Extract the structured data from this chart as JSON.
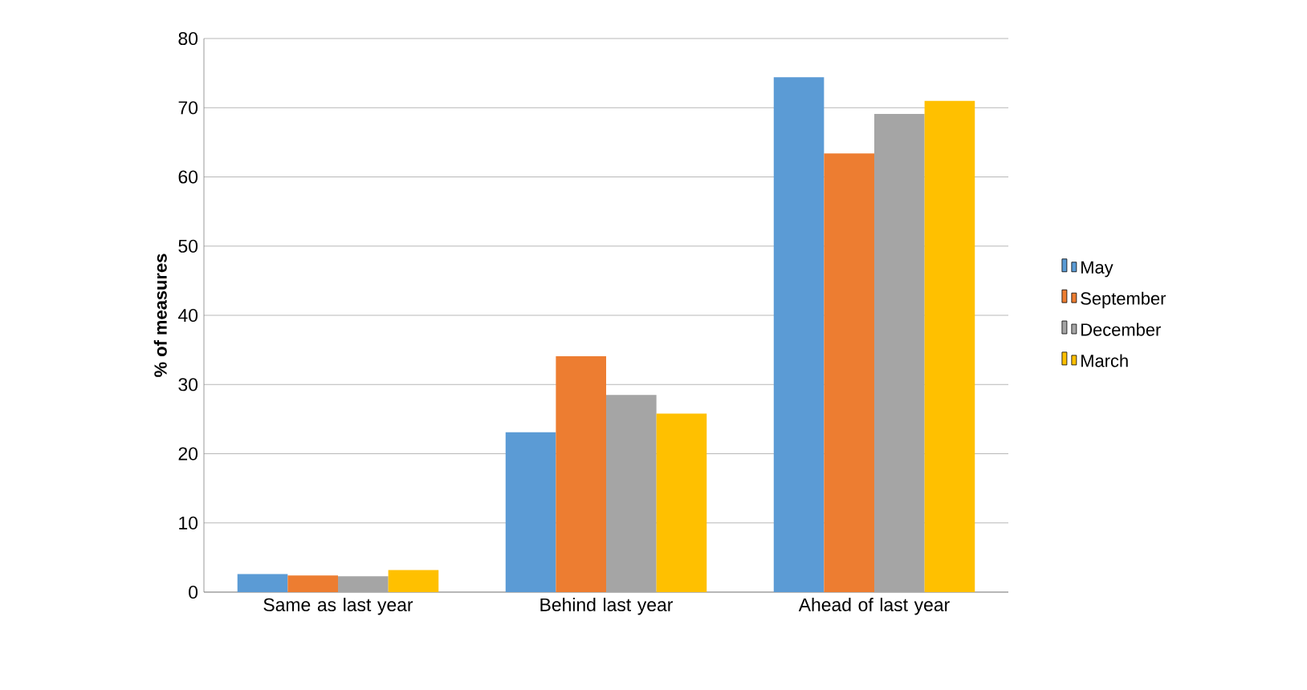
{
  "chart_data": {
    "type": "bar",
    "ylabel": "% of measures",
    "categories": [
      "Same as last year",
      "Behind last year",
      "Ahead of last year"
    ],
    "series": [
      {
        "name": "May",
        "color": "#5b9bd5",
        "values": [
          2.6,
          23.1,
          74.4
        ]
      },
      {
        "name": "September",
        "color": "#ed7d31",
        "values": [
          2.4,
          34.1,
          63.4
        ]
      },
      {
        "name": "December",
        "color": "#a5a5a5",
        "values": [
          2.3,
          28.5,
          69.1
        ]
      },
      {
        "name": "March",
        "color": "#ffc000",
        "values": [
          3.2,
          25.8,
          71.0
        ]
      }
    ],
    "ylim": [
      0,
      80
    ],
    "yticks": [
      0,
      10,
      20,
      30,
      40,
      50,
      60,
      70,
      80
    ],
    "grid": "y",
    "legend": "right"
  }
}
